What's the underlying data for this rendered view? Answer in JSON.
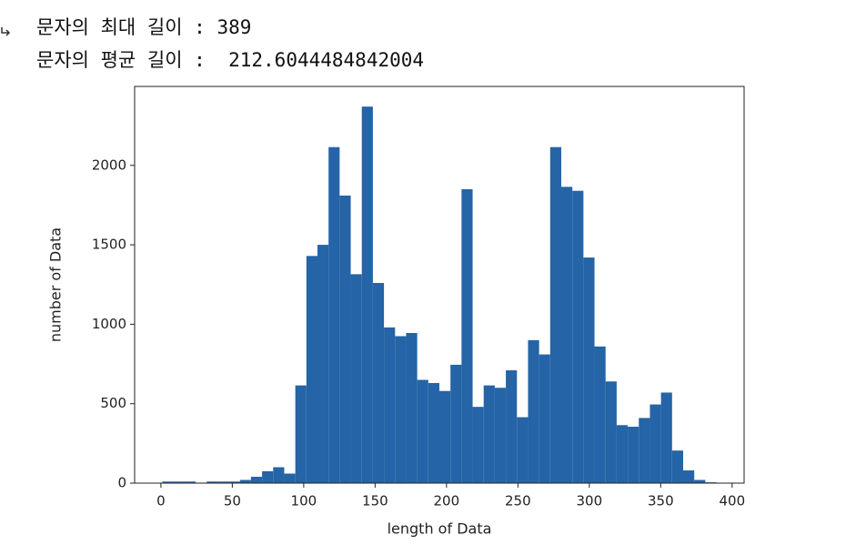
{
  "output": {
    "lines": [
      "문자의 최대 길이 : 389",
      "문자의 평균 길이 :  212.6044484842004"
    ]
  },
  "chart_data": {
    "type": "histogram",
    "xlabel": "length of Data",
    "ylabel": "number of Data",
    "color": "#2564a6",
    "bins": [
      1,
      8.76,
      16.52,
      24.28,
      32.04,
      39.8,
      47.56,
      55.32,
      63.08,
      70.84,
      78.6,
      86.36,
      94.12,
      101.88,
      109.64,
      117.4,
      125.16,
      132.92,
      140.68,
      148.44,
      156.2,
      163.96,
      171.72,
      179.48,
      187.24,
      195,
      202.76,
      210.52,
      218.28,
      226.04,
      233.8,
      241.56,
      249.32,
      257.08,
      264.84,
      272.6,
      280.36,
      288.12,
      295.88,
      303.64,
      311.4,
      319.16,
      326.92,
      334.68,
      342.44,
      350.2,
      357.96,
      365.72,
      373.48,
      381.24,
      389
    ],
    "values": [
      10,
      10,
      10,
      3,
      10,
      10,
      10,
      20,
      40,
      75,
      100,
      60,
      615,
      1430,
      1500,
      2115,
      1810,
      1315,
      2370,
      1260,
      980,
      925,
      945,
      650,
      630,
      580,
      745,
      1850,
      480,
      615,
      600,
      710,
      415,
      900,
      810,
      2115,
      1865,
      1840,
      1420,
      860,
      640,
      365,
      355,
      410,
      495,
      570,
      205,
      80,
      20,
      5
    ],
    "xlim": [
      -18.4,
      408.4
    ],
    "ylim": [
      0,
      2497
    ],
    "xticks": [
      0,
      50,
      100,
      150,
      200,
      250,
      300,
      350,
      400
    ],
    "yticks": [
      0,
      500,
      1000,
      1500,
      2000
    ]
  }
}
